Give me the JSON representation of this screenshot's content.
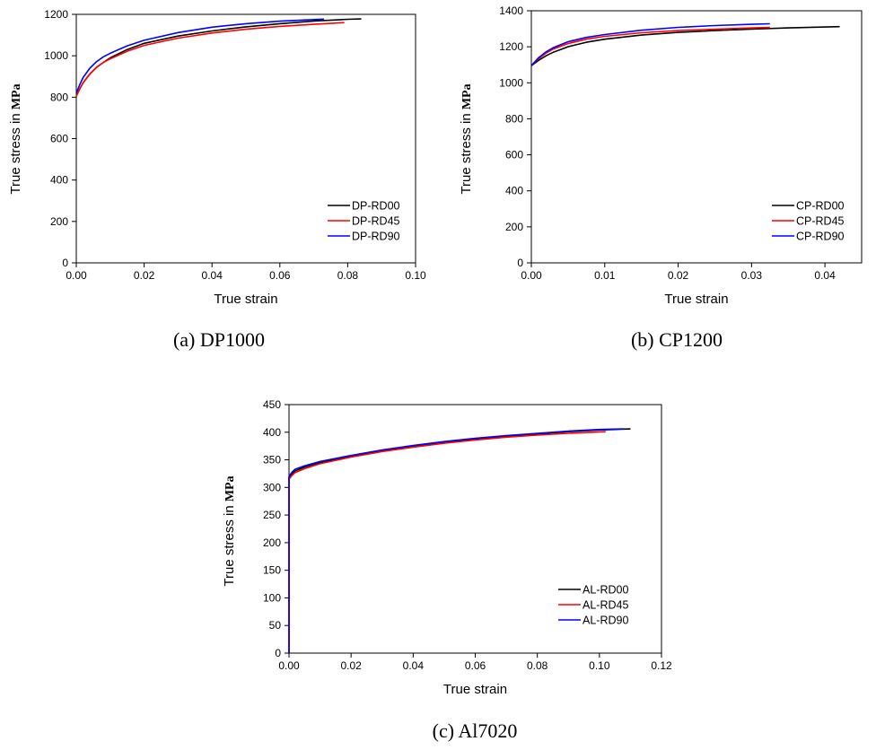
{
  "chart_data": [
    {
      "type": "line",
      "caption": "(a) DP1000",
      "xlabel": "True strain",
      "ylabel": "True stress in",
      "ylabel_unit": "MPa",
      "xlim": [
        0,
        0.1
      ],
      "ylim": [
        0,
        1200
      ],
      "xticks": [
        "0.00",
        "0.02",
        "0.04",
        "0.06",
        "0.08",
        "0.10"
      ],
      "yticks": [
        "0",
        "200",
        "400",
        "600",
        "800",
        "1000",
        "1200"
      ],
      "legend_position": "bottom-right",
      "series": [
        {
          "name": "DP-RD00",
          "color": "#000000",
          "x": [
            0,
            0.001,
            0.002,
            0.004,
            0.006,
            0.008,
            0.01,
            0.015,
            0.02,
            0.03,
            0.04,
            0.05,
            0.06,
            0.07,
            0.08,
            0.084
          ],
          "y": [
            805,
            840,
            870,
            912,
            945,
            968,
            990,
            1030,
            1060,
            1095,
            1120,
            1140,
            1155,
            1168,
            1176,
            1178
          ]
        },
        {
          "name": "DP-RD45",
          "color": "#ff0000",
          "x": [
            0,
            0.001,
            0.002,
            0.004,
            0.006,
            0.008,
            0.01,
            0.015,
            0.02,
            0.03,
            0.04,
            0.05,
            0.06,
            0.07,
            0.079
          ],
          "y": [
            805,
            840,
            870,
            912,
            945,
            968,
            985,
            1022,
            1050,
            1085,
            1110,
            1128,
            1142,
            1152,
            1160
          ]
        },
        {
          "name": "DP-RD90",
          "color": "#0000ff",
          "x": [
            0,
            0.001,
            0.002,
            0.004,
            0.006,
            0.008,
            0.01,
            0.015,
            0.02,
            0.03,
            0.04,
            0.05,
            0.06,
            0.07,
            0.073
          ],
          "y": [
            820,
            860,
            895,
            940,
            972,
            995,
            1012,
            1048,
            1075,
            1112,
            1138,
            1155,
            1167,
            1175,
            1177
          ]
        }
      ]
    },
    {
      "type": "line",
      "caption": "(b) CP1200",
      "xlabel": "True strain",
      "ylabel": "True stress in",
      "ylabel_unit": "MPa",
      "xlim": [
        0,
        0.045
      ],
      "ylim": [
        0,
        1400
      ],
      "xticks": [
        "0.00",
        "0.01",
        "0.02",
        "0.03",
        "0.04"
      ],
      "xtick_values": [
        0,
        0.01,
        0.02,
        0.03,
        0.04
      ],
      "yticks": [
        "0",
        "200",
        "400",
        "600",
        "800",
        "1000",
        "1200",
        "1400"
      ],
      "legend_position": "bottom-right",
      "series": [
        {
          "name": "CP-RD00",
          "color": "#000000",
          "x": [
            0,
            0.001,
            0.002,
            0.003,
            0.005,
            0.0075,
            0.01,
            0.015,
            0.02,
            0.025,
            0.03,
            0.035,
            0.04,
            0.042
          ],
          "y": [
            1095,
            1125,
            1150,
            1170,
            1200,
            1225,
            1242,
            1265,
            1280,
            1290,
            1298,
            1305,
            1310,
            1312
          ]
        },
        {
          "name": "CP-RD45",
          "color": "#ff0000",
          "x": [
            0,
            0.001,
            0.002,
            0.003,
            0.005,
            0.0075,
            0.01,
            0.015,
            0.02,
            0.025,
            0.03,
            0.0325
          ],
          "y": [
            1095,
            1135,
            1165,
            1188,
            1218,
            1242,
            1258,
            1278,
            1290,
            1298,
            1305,
            1308
          ]
        },
        {
          "name": "CP-RD90",
          "color": "#0000ff",
          "x": [
            0,
            0.001,
            0.002,
            0.003,
            0.005,
            0.0075,
            0.01,
            0.015,
            0.02,
            0.025,
            0.03,
            0.0325
          ],
          "y": [
            1095,
            1140,
            1172,
            1195,
            1228,
            1252,
            1268,
            1292,
            1308,
            1318,
            1325,
            1328
          ]
        }
      ]
    },
    {
      "type": "line",
      "caption": "(c) Al7020",
      "xlabel": "True strain",
      "ylabel": "True stress in",
      "ylabel_unit": "MPa",
      "xlim": [
        0,
        0.12
      ],
      "ylim": [
        0,
        450
      ],
      "xticks": [
        "0.00",
        "0.02",
        "0.04",
        "0.06",
        "0.08",
        "0.10",
        "0.12"
      ],
      "yticks": [
        "0",
        "50",
        "100",
        "150",
        "200",
        "250",
        "300",
        "350",
        "400",
        "450"
      ],
      "legend_position": "bottom-right",
      "series": [
        {
          "name": "AL-RD00",
          "color": "#000000",
          "x": [
            0,
            0,
            0.001,
            0.002,
            0.005,
            0.01,
            0.02,
            0.03,
            0.04,
            0.05,
            0.06,
            0.07,
            0.08,
            0.09,
            0.1,
            0.11
          ],
          "y": [
            0,
            318,
            325,
            330,
            337,
            345,
            357,
            367,
            375,
            382,
            388,
            393,
            397,
            401,
            404,
            406
          ]
        },
        {
          "name": "AL-RD45",
          "color": "#ff0000",
          "x": [
            0,
            0,
            0.001,
            0.002,
            0.005,
            0.01,
            0.02,
            0.03,
            0.04,
            0.05,
            0.06,
            0.07,
            0.08,
            0.09,
            0.102
          ],
          "y": [
            0,
            315,
            322,
            327,
            334,
            343,
            355,
            365,
            373,
            380,
            386,
            391,
            395,
            398,
            401
          ]
        },
        {
          "name": "AL-RD90",
          "color": "#0000ff",
          "x": [
            0,
            0,
            0.001,
            0.002,
            0.005,
            0.01,
            0.02,
            0.03,
            0.04,
            0.05,
            0.06,
            0.07,
            0.08,
            0.09,
            0.1,
            0.108
          ],
          "y": [
            0,
            320,
            328,
            333,
            339,
            347,
            358,
            368,
            376,
            383,
            389,
            394,
            398,
            402,
            405,
            406
          ]
        }
      ]
    }
  ]
}
